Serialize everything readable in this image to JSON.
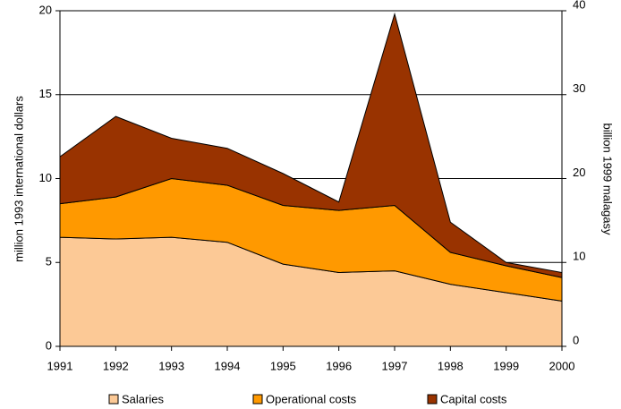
{
  "chart_data": {
    "type": "stacked-area",
    "categories": [
      "1991",
      "1992",
      "1993",
      "1994",
      "1995",
      "1996",
      "1997",
      "1998",
      "1999",
      "2000"
    ],
    "series": [
      {
        "name": "Salaries",
        "color": "#fcc996",
        "values": [
          6.5,
          6.4,
          6.5,
          6.2,
          4.9,
          4.4,
          4.5,
          3.7,
          3.2,
          2.7
        ]
      },
      {
        "name": "Operational costs",
        "color": "#ff9900",
        "values": [
          2.0,
          2.5,
          3.5,
          3.4,
          3.5,
          3.7,
          3.9,
          1.9,
          1.6,
          1.4
        ]
      },
      {
        "name": "Capital costs",
        "color": "#993300",
        "values": [
          2.8,
          4.8,
          2.4,
          2.2,
          1.9,
          0.5,
          11.4,
          1.8,
          0.2,
          0.3
        ]
      }
    ],
    "ylabel": "million 1993 international dollars",
    "y2label": "billion 1999 malagasy",
    "ylim": [
      0,
      20
    ],
    "yticks": [
      0,
      5,
      10,
      15,
      20
    ],
    "y2lim": [
      0,
      40
    ],
    "y2ticks": [
      0,
      10,
      20,
      30,
      40
    ],
    "grid": true,
    "legend": "bottom"
  }
}
